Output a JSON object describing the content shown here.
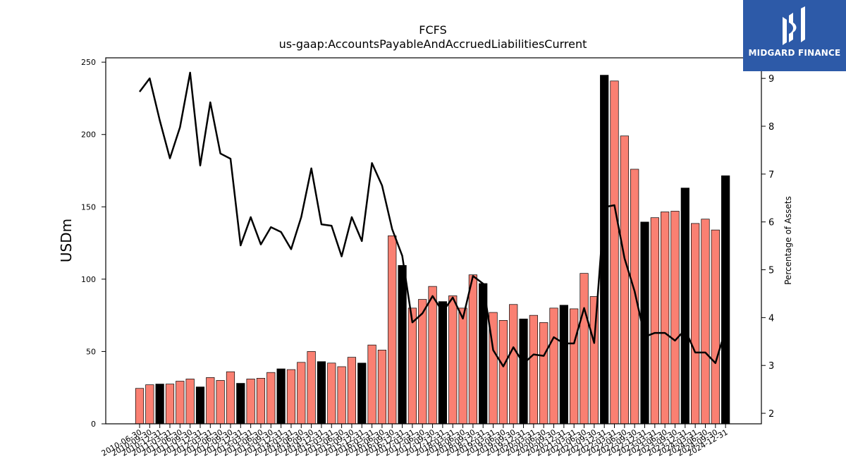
{
  "chart_data": {
    "type": "bar",
    "title": "FCFS",
    "subtitle": "us-gaap:AccountsPayableAndAccruedLiabilitiesCurrent",
    "ylabel": "USDm",
    "y2label": "Percentage of Assets",
    "ylim": [
      0,
      253
    ],
    "y2lim": [
      1.78,
      9.43
    ],
    "yticks": [
      0,
      50,
      100,
      150,
      200,
      250
    ],
    "y2ticks": [
      2,
      3,
      4,
      5,
      6,
      7,
      8,
      9
    ],
    "colors": {
      "bar": "#fa8072",
      "bar_highlight": "#000000",
      "line": "#000000"
    },
    "categories": [
      "2010-06-30",
      "2010-09-30",
      "2010-12-31",
      "2011-03-31",
      "2011-06-30",
      "2011-09-30",
      "2011-12-31",
      "2012-03-31",
      "2012-06-30",
      "2012-09-30",
      "2012-12-31",
      "2013-03-31",
      "2013-06-30",
      "2013-09-30",
      "2013-12-31",
      "2014-03-31",
      "2014-06-30",
      "2014-09-30",
      "2014-12-31",
      "2015-03-31",
      "2015-06-30",
      "2015-09-30",
      "2015-12-31",
      "2016-03-31",
      "2016-06-30",
      "2016-09-30",
      "2016-12-31",
      "2017-03-31",
      "2017-06-30",
      "2017-09-30",
      "2017-12-31",
      "2018-03-31",
      "2018-06-30",
      "2018-09-30",
      "2018-12-31",
      "2019-03-31",
      "2019-06-30",
      "2019-09-30",
      "2019-12-31",
      "2020-03-31",
      "2020-06-30",
      "2020-09-30",
      "2020-12-31",
      "2021-03-31",
      "2021-06-30",
      "2021-09-30",
      "2021-12-31",
      "2022-03-31",
      "2022-06-30",
      "2022-09-30",
      "2022-12-31",
      "2023-03-31",
      "2023-06-30",
      "2023-09-30",
      "2023-12-31",
      "2024-03-31",
      "2024-06-30",
      "2024-09-30",
      "2024-12-31"
    ],
    "series": [
      {
        "type": "bar",
        "values": [
          24.5,
          27,
          27.5,
          27.5,
          29.5,
          31,
          25.5,
          32,
          30,
          36,
          28,
          31,
          31.5,
          35.5,
          38,
          37.5,
          42.5,
          50,
          43,
          42,
          39.5,
          46,
          42,
          54.5,
          51,
          130,
          109.5,
          80,
          86,
          95,
          84.5,
          88.5,
          80,
          103,
          97,
          77,
          71.5,
          82.5,
          72.5,
          75,
          70,
          80,
          82,
          79.5,
          104,
          88,
          241,
          237,
          199,
          176,
          139.5,
          142.5,
          146.5,
          147,
          163,
          138.5,
          141.5,
          134,
          171.5
        ],
        "highlight": [
          false,
          false,
          true,
          false,
          false,
          false,
          true,
          false,
          false,
          false,
          true,
          false,
          false,
          false,
          true,
          false,
          false,
          false,
          true,
          false,
          false,
          false,
          true,
          false,
          false,
          false,
          true,
          false,
          false,
          false,
          true,
          false,
          false,
          false,
          true,
          false,
          false,
          false,
          true,
          false,
          false,
          false,
          true,
          false,
          false,
          false,
          true,
          false,
          false,
          false,
          true,
          false,
          false,
          false,
          true,
          false,
          false,
          false,
          true
        ]
      },
      {
        "type": "line",
        "axis": "right",
        "values": [
          8.72,
          9.0,
          8.12,
          7.33,
          7.98,
          9.12,
          7.18,
          8.5,
          7.43,
          7.32,
          5.51,
          6.1,
          5.53,
          5.89,
          5.79,
          5.43,
          6.1,
          7.12,
          5.95,
          5.92,
          5.28,
          6.1,
          5.6,
          7.23,
          6.76,
          5.85,
          5.29,
          3.9,
          4.09,
          4.45,
          4.12,
          4.42,
          3.98,
          4.87,
          4.71,
          3.32,
          2.98,
          3.38,
          3.04,
          3.23,
          3.2,
          3.59,
          3.46,
          3.46,
          4.2,
          3.47,
          6.31,
          6.35,
          5.24,
          4.55,
          3.6,
          3.68,
          3.68,
          3.52,
          3.75,
          3.27,
          3.27,
          3.05,
          3.75
        ]
      }
    ]
  },
  "logo": {
    "text": "MIDGARD FINANCE"
  }
}
